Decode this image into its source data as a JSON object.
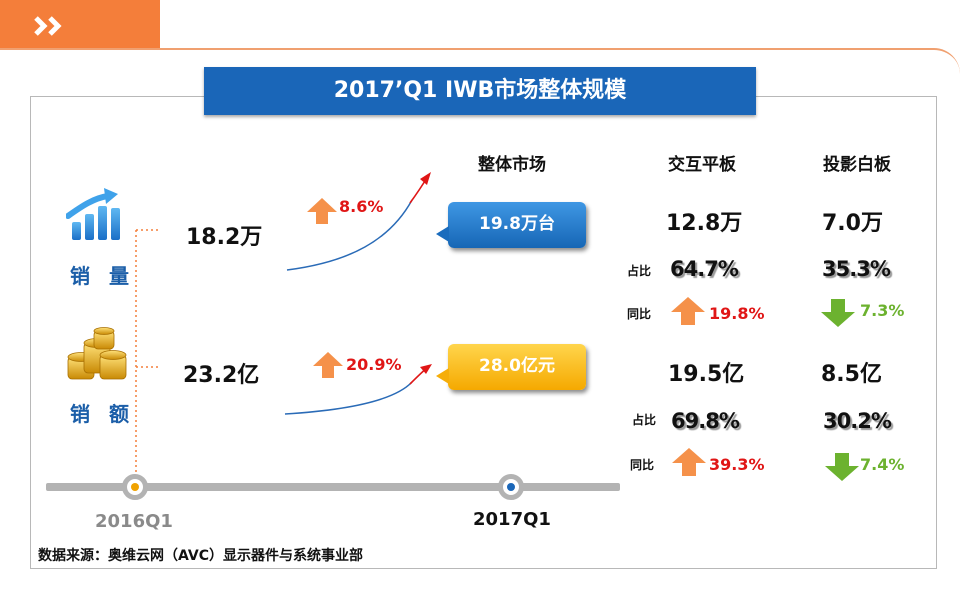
{
  "title": "2017’Q1 IWB市场整体规模",
  "colors": {
    "orange": "#f47e3a",
    "blue": "#1a66b8",
    "red": "#e01616",
    "green": "#6cb22f",
    "gold": "#f5a900"
  },
  "left": {
    "sales_volume": {
      "label": "销 量",
      "icon": "bar-chart-icon",
      "value_2016": "18.2万",
      "growth": "8.6%"
    },
    "sales_amount": {
      "label": "销 额",
      "icon": "gold-coins-icon",
      "value_2016": "23.2亿",
      "growth": "20.9%"
    }
  },
  "overall": {
    "heading": "整体市场",
    "volume": "19.8万台",
    "amount": "28.0亿元"
  },
  "columns": {
    "interactive_panel": {
      "heading": "交互平板"
    },
    "projection_board": {
      "heading": "投影白板"
    }
  },
  "volume_stats": {
    "share_label": "占比",
    "yoy_label": "同比",
    "interactive_panel": {
      "value": "12.8万",
      "share": "64.7%",
      "yoy": "19.8%",
      "trend": "up"
    },
    "projection_board": {
      "value": "7.0万",
      "share": "35.3%",
      "yoy": "7.3%",
      "trend": "down"
    }
  },
  "amount_stats": {
    "share_label": "占比",
    "yoy_label": "同比",
    "interactive_panel": {
      "value": "19.5亿",
      "share": "69.8%",
      "yoy": "39.3%",
      "trend": "up"
    },
    "projection_board": {
      "value": "8.5亿",
      "share": "30.2%",
      "yoy": "7.4%",
      "trend": "down"
    }
  },
  "timeline": {
    "start": "2016Q1",
    "end": "2017Q1"
  },
  "source": "数据来源：奥维云网（AVC）显示器件与系统事业部"
}
